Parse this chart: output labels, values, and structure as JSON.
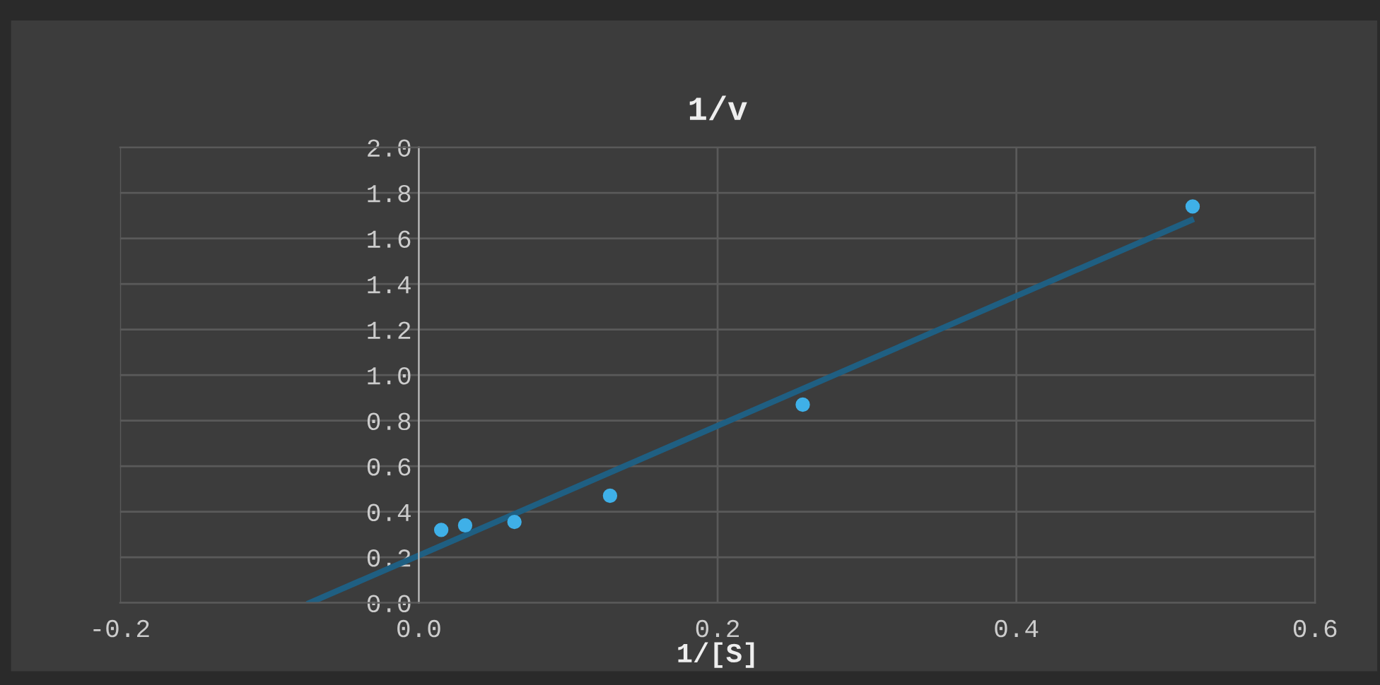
{
  "chart_data": {
    "type": "scatter",
    "title": "1/v",
    "xlabel": "1/[S]",
    "x": [
      0.015,
      0.031,
      0.064,
      0.128,
      0.257,
      0.518
    ],
    "series": [
      {
        "color": "#3fb0e8",
        "values": [
          0.32,
          0.34,
          0.355,
          0.47,
          0.87,
          1.74
        ],
        "marker": "circle"
      },
      {
        "type": "line",
        "color": "#1f5f82",
        "x": [
          -0.073,
          0.517
        ],
        "values": [
          0.0,
          1.68
        ],
        "marker": "none"
      }
    ],
    "xlim": [
      -0.2,
      0.6
    ],
    "xticks": [
      -0.2,
      {
        "value": 0,
        "label": "0.0"
      },
      0.2,
      0.4,
      0.6
    ],
    "ylim": [
      0.0,
      2.0
    ],
    "yticks": [
      {
        "value": 0,
        "label": "0.0"
      },
      0.2,
      0.4,
      0.6,
      0.8,
      {
        "value": 1,
        "label": "1.0"
      },
      1.2,
      1.4,
      1.6,
      1.8,
      {
        "value": 2,
        "label": "2.0"
      }
    ],
    "grid": true,
    "legend": false
  }
}
